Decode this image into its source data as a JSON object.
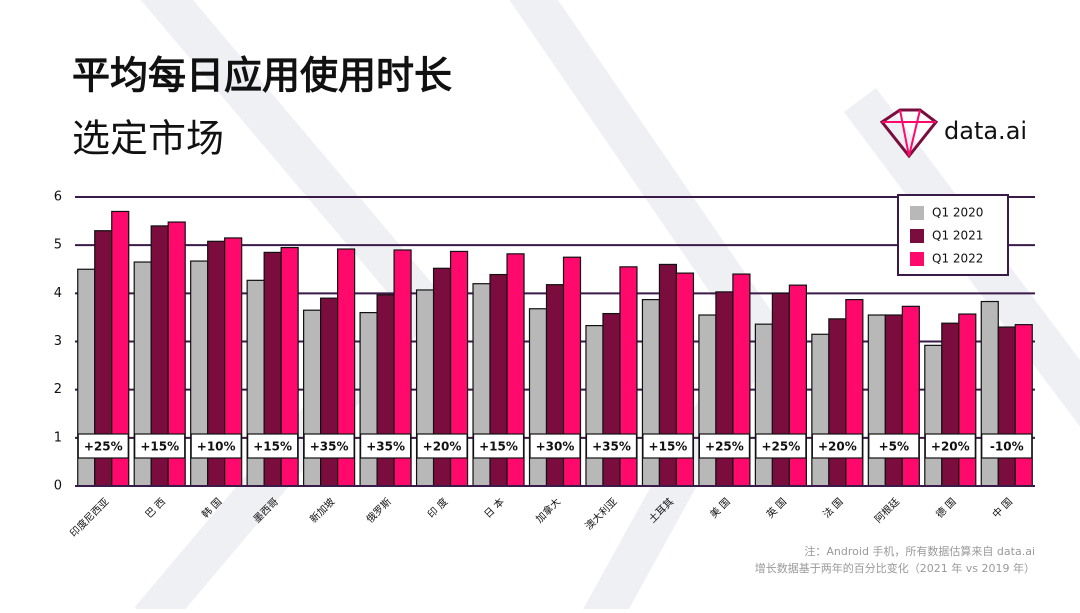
{
  "chart_data": {
    "type": "bar",
    "title": "平均每日应用使用时长",
    "subtitle": "选定市场",
    "logo": "data.ai",
    "categories": [
      "印度尼西亚",
      "巴 西",
      "韩 国",
      "墨西哥",
      "新加坡",
      "俄罗斯",
      "印 度",
      "日 本",
      "加拿大",
      "澳大利亚",
      "土耳其",
      "美 国",
      "英 国",
      "法 国",
      "阿根廷",
      "德 国",
      "中 国"
    ],
    "series": [
      {
        "name": "Q1 2020",
        "color": "#b8b8b8",
        "values": [
          4.5,
          4.65,
          4.67,
          4.27,
          3.65,
          3.6,
          4.07,
          4.2,
          3.68,
          3.33,
          3.87,
          3.55,
          3.36,
          3.15,
          3.55,
          2.92,
          3.83
        ]
      },
      {
        "name": "Q1 2021",
        "color": "#7a0c3e",
        "values": [
          5.3,
          5.4,
          5.08,
          4.85,
          3.9,
          3.97,
          4.52,
          4.39,
          4.18,
          3.58,
          4.6,
          4.03,
          4.0,
          3.47,
          3.55,
          3.38,
          3.3
        ]
      },
      {
        "name": "Q1 2022",
        "color": "#ff0a6c",
        "values": [
          5.7,
          5.48,
          5.15,
          4.95,
          4.92,
          4.9,
          4.87,
          4.82,
          4.75,
          4.55,
          4.42,
          4.4,
          4.17,
          3.87,
          3.73,
          3.57,
          3.35
        ]
      }
    ],
    "growth_labels": [
      "+25%",
      "+15%",
      "+10%",
      "+15%",
      "+35%",
      "+35%",
      "+20%",
      "+15%",
      "+30%",
      "+35%",
      "+15%",
      "+25%",
      "+25%",
      "+20%",
      "+5%",
      "+20%",
      "-10%"
    ],
    "ylim": [
      0,
      6
    ],
    "yticks": [
      0,
      1,
      2,
      3,
      4,
      5,
      6
    ],
    "grid": true,
    "legend": "top-right",
    "notes": [
      "注：Android 手机，所有数据估算来自 data.ai",
      "增长数据基于两年的百分比变化（2021 年 vs 2019 年）"
    ]
  }
}
